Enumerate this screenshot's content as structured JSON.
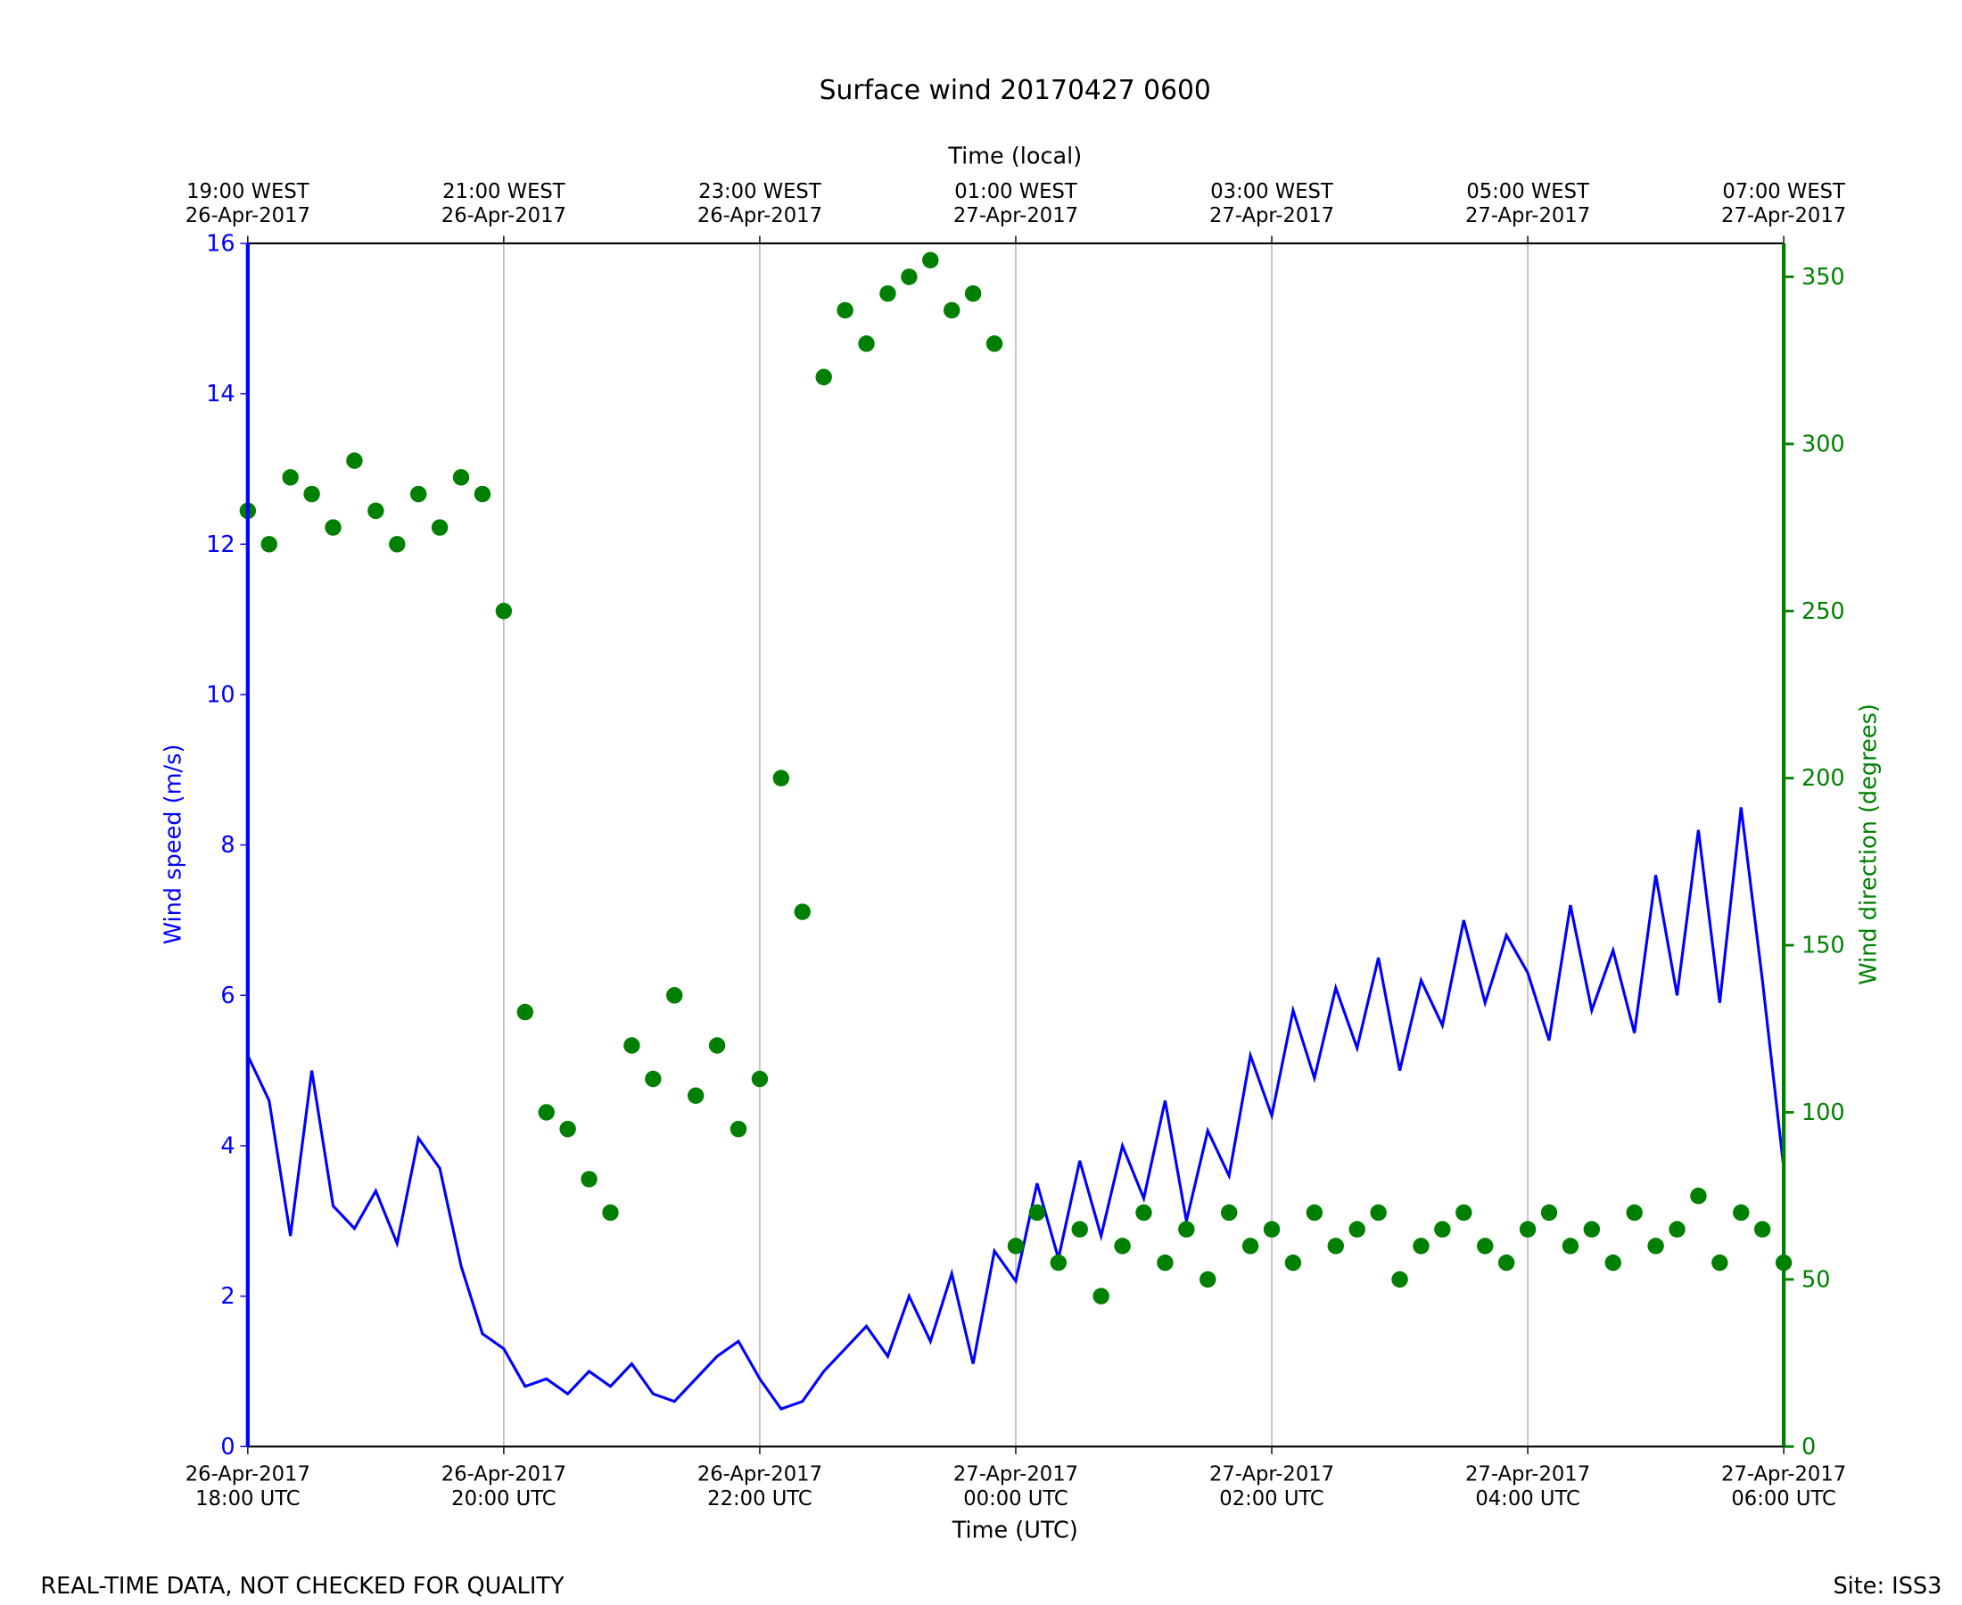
{
  "chart_data": {
    "type": "line-scatter",
    "title": "Surface wind 20170427 0600",
    "xlabel": "Time (UTC)",
    "x2label": "Time (local)",
    "ylabel": "Wind speed (m/s)",
    "y2label": "Wind direction (degrees)",
    "footer_left": "REAL-TIME DATA, NOT CHECKED FOR QUALITY",
    "footer_right": "Site: ISS3",
    "grid": true,
    "xlim": [
      "2017-04-26T18:00",
      "2017-04-27T06:00"
    ],
    "xticks": [
      {
        "value": "2017-04-26T18:00",
        "label": "26-Apr-2017\n18:00 UTC"
      },
      {
        "value": "2017-04-26T20:00",
        "label": "26-Apr-2017\n20:00 UTC"
      },
      {
        "value": "2017-04-26T22:00",
        "label": "26-Apr-2017\n22:00 UTC"
      },
      {
        "value": "2017-04-27T00:00",
        "label": "27-Apr-2017\n00:00 UTC"
      },
      {
        "value": "2017-04-27T02:00",
        "label": "27-Apr-2017\n02:00 UTC"
      },
      {
        "value": "2017-04-27T04:00",
        "label": "27-Apr-2017\n04:00 UTC"
      },
      {
        "value": "2017-04-27T06:00",
        "label": "27-Apr-2017\n06:00 UTC"
      }
    ],
    "x2ticks": [
      {
        "value": "2017-04-26T18:00",
        "label": "19:00 WEST\n26-Apr-2017"
      },
      {
        "value": "2017-04-26T20:00",
        "label": "21:00 WEST\n26-Apr-2017"
      },
      {
        "value": "2017-04-26T22:00",
        "label": "23:00 WEST\n26-Apr-2017"
      },
      {
        "value": "2017-04-27T00:00",
        "label": "01:00 WEST\n27-Apr-2017"
      },
      {
        "value": "2017-04-27T02:00",
        "label": "03:00 WEST\n27-Apr-2017"
      },
      {
        "value": "2017-04-27T04:00",
        "label": "05:00 WEST\n27-Apr-2017"
      },
      {
        "value": "2017-04-27T06:00",
        "label": "07:00 WEST\n27-Apr-2017"
      }
    ],
    "ylim": [
      0,
      16
    ],
    "yticks": [
      0,
      2,
      4,
      6,
      8,
      10,
      12,
      14,
      16
    ],
    "y2lim": [
      0,
      360
    ],
    "y2ticks": [
      0,
      50,
      100,
      150,
      200,
      250,
      300,
      350
    ],
    "x": [
      "2017-04-26T18:00",
      "2017-04-26T18:10",
      "2017-04-26T18:20",
      "2017-04-26T18:30",
      "2017-04-26T18:40",
      "2017-04-26T18:50",
      "2017-04-26T19:00",
      "2017-04-26T19:10",
      "2017-04-26T19:20",
      "2017-04-26T19:30",
      "2017-04-26T19:40",
      "2017-04-26T19:50",
      "2017-04-26T20:00",
      "2017-04-26T20:10",
      "2017-04-26T20:20",
      "2017-04-26T20:30",
      "2017-04-26T20:40",
      "2017-04-26T20:50",
      "2017-04-26T21:00",
      "2017-04-26T21:10",
      "2017-04-26T21:20",
      "2017-04-26T21:30",
      "2017-04-26T21:40",
      "2017-04-26T21:50",
      "2017-04-26T22:00",
      "2017-04-26T22:10",
      "2017-04-26T22:20",
      "2017-04-26T22:30",
      "2017-04-26T22:40",
      "2017-04-26T22:50",
      "2017-04-26T23:00",
      "2017-04-26T23:10",
      "2017-04-26T23:20",
      "2017-04-26T23:30",
      "2017-04-26T23:40",
      "2017-04-26T23:50",
      "2017-04-27T00:00",
      "2017-04-27T00:10",
      "2017-04-27T00:20",
      "2017-04-27T00:30",
      "2017-04-27T00:40",
      "2017-04-27T00:50",
      "2017-04-27T01:00",
      "2017-04-27T01:10",
      "2017-04-27T01:20",
      "2017-04-27T01:30",
      "2017-04-27T01:40",
      "2017-04-27T01:50",
      "2017-04-27T02:00",
      "2017-04-27T02:10",
      "2017-04-27T02:20",
      "2017-04-27T02:30",
      "2017-04-27T02:40",
      "2017-04-27T02:50",
      "2017-04-27T03:00",
      "2017-04-27T03:10",
      "2017-04-27T03:20",
      "2017-04-27T03:30",
      "2017-04-27T03:40",
      "2017-04-27T03:50",
      "2017-04-27T04:00",
      "2017-04-27T04:10",
      "2017-04-27T04:20",
      "2017-04-27T04:30",
      "2017-04-27T04:40",
      "2017-04-27T04:50",
      "2017-04-27T05:00",
      "2017-04-27T05:10",
      "2017-04-27T05:20",
      "2017-04-27T05:30",
      "2017-04-27T05:40",
      "2017-04-27T05:50",
      "2017-04-27T06:00"
    ],
    "series": [
      {
        "name": "Wind speed",
        "type": "line",
        "axis": "y",
        "color": "#0000ff",
        "values": [
          5.2,
          4.6,
          2.8,
          5.0,
          3.2,
          2.9,
          3.4,
          2.7,
          4.1,
          3.7,
          2.4,
          1.5,
          1.3,
          0.8,
          0.9,
          0.7,
          1.0,
          0.8,
          1.1,
          0.7,
          0.6,
          0.9,
          1.2,
          1.4,
          0.9,
          0.5,
          0.6,
          1.0,
          1.3,
          1.6,
          1.2,
          2.0,
          1.4,
          2.3,
          1.1,
          2.6,
          2.2,
          3.5,
          2.5,
          3.8,
          2.8,
          4.0,
          3.3,
          4.6,
          3.0,
          4.2,
          3.6,
          5.2,
          4.4,
          5.8,
          4.9,
          6.1,
          5.3,
          6.5,
          5.0,
          6.2,
          5.6,
          7.0,
          5.9,
          6.8,
          6.3,
          5.4,
          7.2,
          5.8,
          6.6,
          5.5,
          7.6,
          6.0,
          8.2,
          5.9,
          8.5,
          6.2,
          3.7
        ]
      },
      {
        "name": "Wind direction",
        "type": "scatter",
        "axis": "y2",
        "color": "#008000",
        "values": [
          280,
          270,
          290,
          285,
          275,
          295,
          280,
          270,
          285,
          275,
          290,
          285,
          250,
          130,
          100,
          95,
          80,
          70,
          120,
          110,
          135,
          105,
          120,
          95,
          110,
          200,
          160,
          320,
          340,
          330,
          345,
          350,
          355,
          340,
          345,
          330,
          60,
          70,
          55,
          65,
          45,
          60,
          70,
          55,
          65,
          50,
          70,
          60,
          65,
          55,
          70,
          60,
          65,
          70,
          50,
          60,
          65,
          70,
          60,
          55,
          65,
          70,
          60,
          65,
          55,
          70,
          60,
          65,
          75,
          55,
          70,
          65,
          55
        ]
      }
    ]
  }
}
